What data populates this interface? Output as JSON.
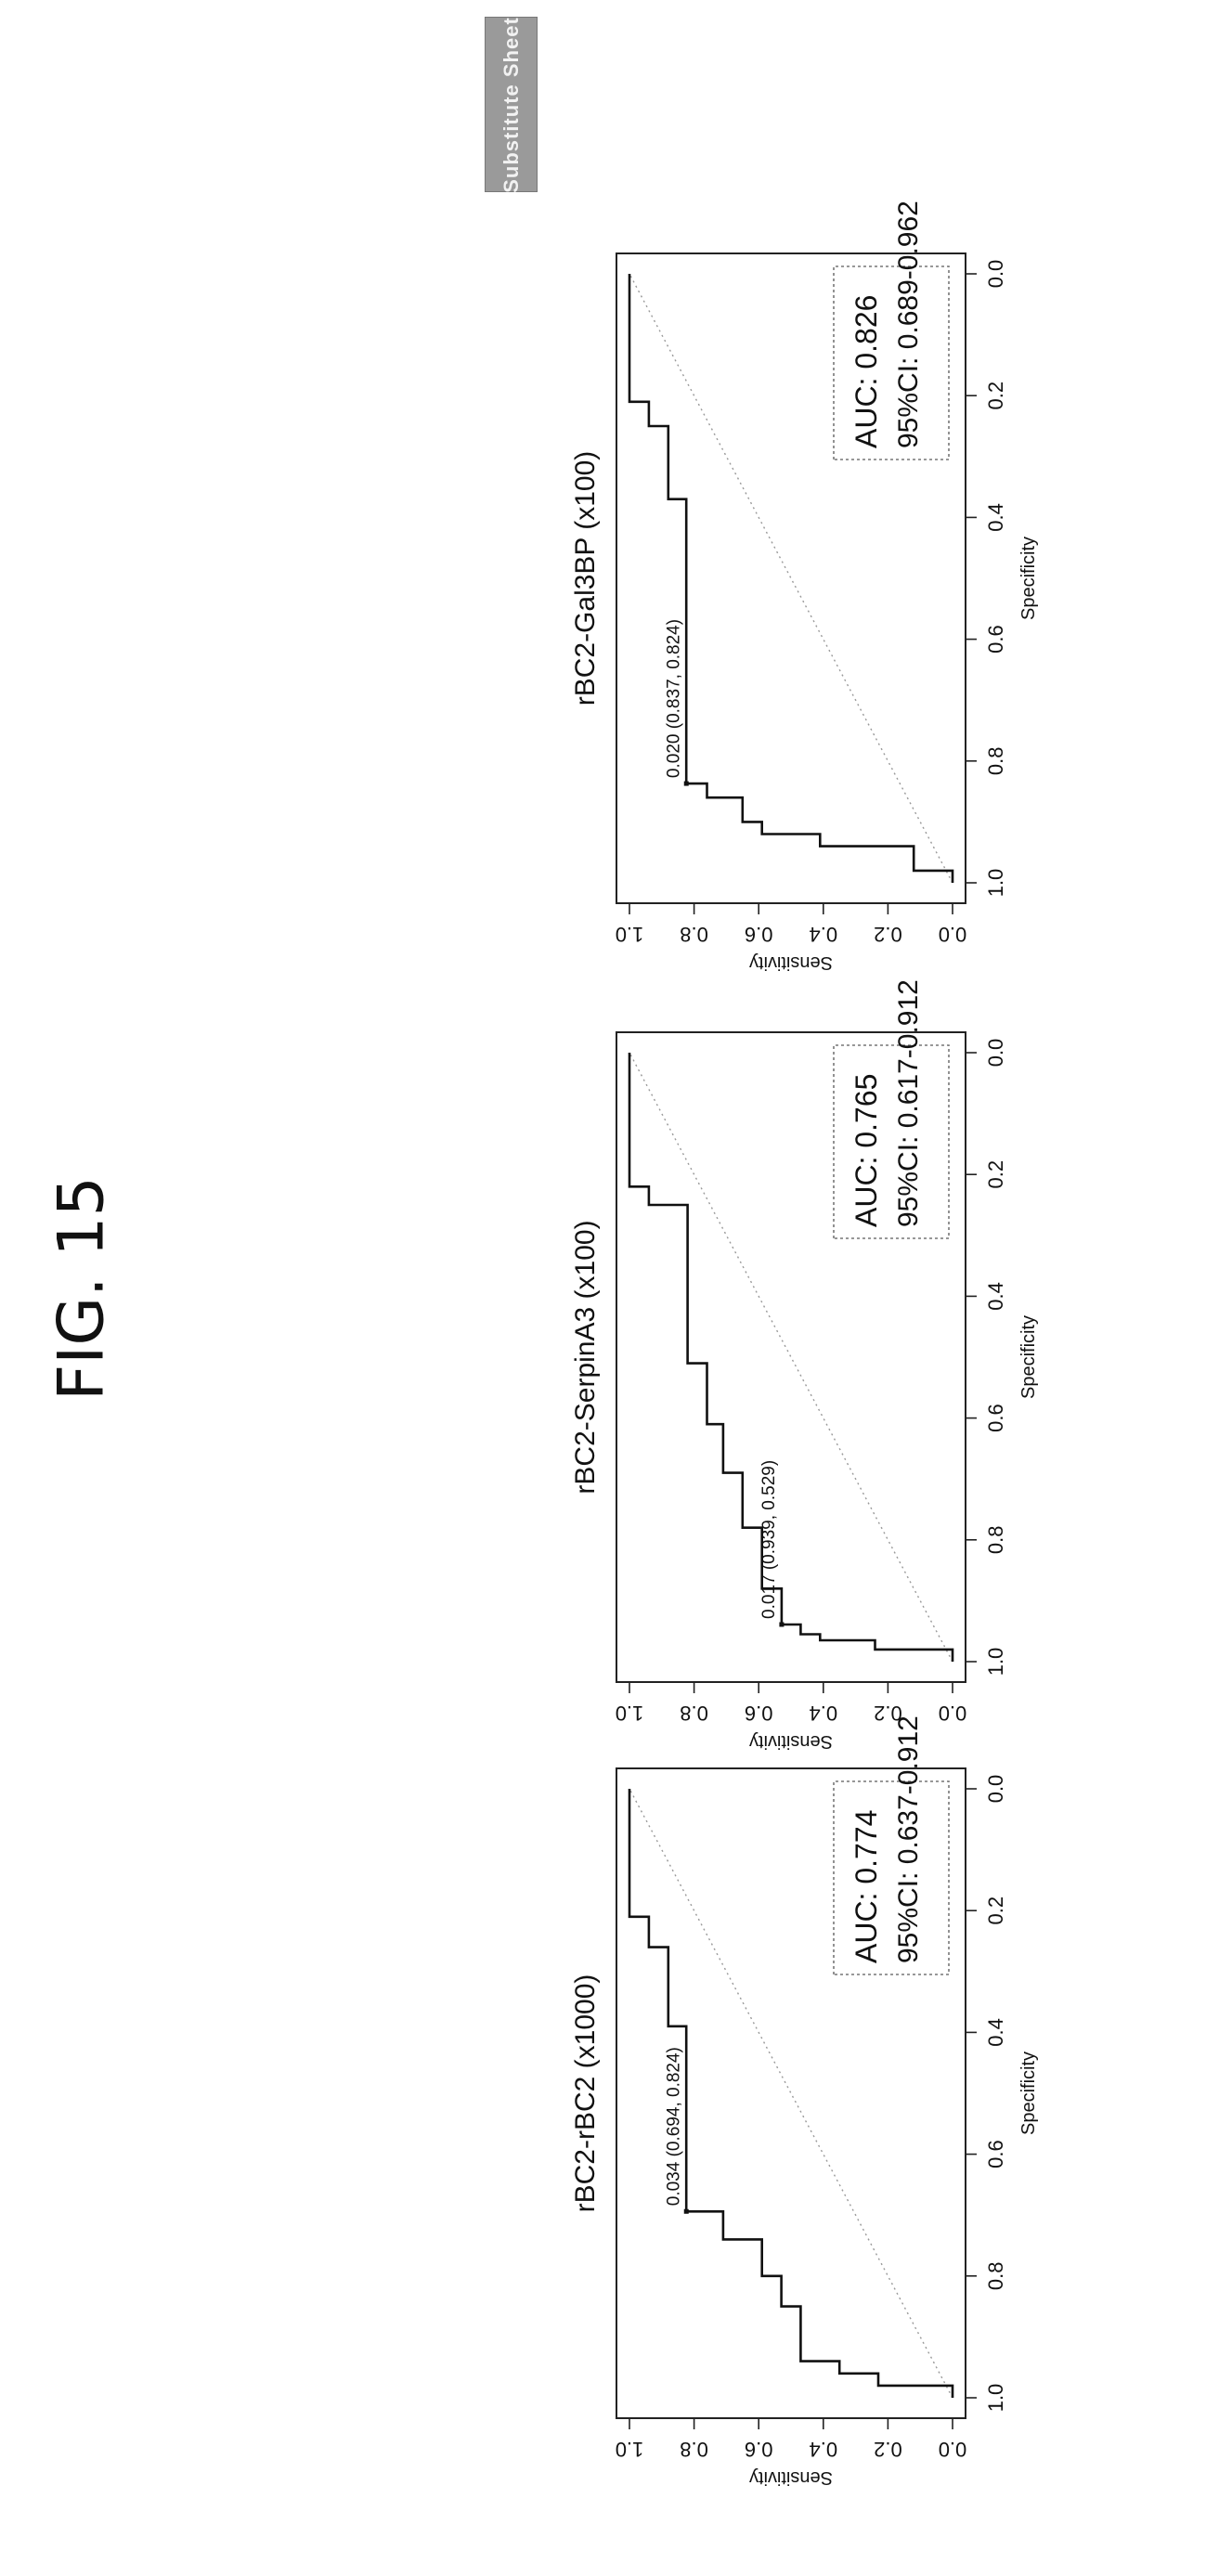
{
  "figure_title": "FIG. 15",
  "stamp_text": "Substitute Sheet",
  "chart_data": [
    {
      "type": "line",
      "title": "rBC2-rBC2 (x1000)",
      "xlabel": "Specificity",
      "ylabel": "Sensitivity",
      "xlim": [
        1.0,
        0.0
      ],
      "ylim": [
        0.0,
        1.0
      ],
      "x_ticks": [
        "1.0",
        "0.8",
        "0.6",
        "0.4",
        "0.2",
        "0.0"
      ],
      "y_ticks": [
        "0.0",
        "0.2",
        "0.4",
        "0.6",
        "0.8",
        "1.0"
      ],
      "grid": false,
      "series": [
        {
          "x": [
            1.0,
            0.98,
            0.98,
            0.96,
            0.96,
            0.94,
            0.94,
            0.85,
            0.85,
            0.8,
            0.8,
            0.74,
            0.74,
            0.694,
            0.694,
            0.39,
            0.39,
            0.26,
            0.26,
            0.21,
            0.21,
            0.0
          ],
          "y": [
            0.0,
            0.0,
            0.23,
            0.23,
            0.35,
            0.35,
            0.47,
            0.47,
            0.53,
            0.53,
            0.59,
            0.59,
            0.71,
            0.71,
            0.824,
            0.824,
            0.88,
            0.88,
            0.94,
            0.94,
            1.0,
            1.0
          ]
        }
      ],
      "reference_line": {
        "x": [
          1.0,
          0.0
        ],
        "y": [
          0.0,
          1.0
        ]
      },
      "threshold": {
        "label": "0.034 (0.694, 0.824)",
        "specificity": 0.694,
        "sensitivity": 0.824
      },
      "annotation": {
        "auc": "AUC: 0.774",
        "ci": "95%CI: 0.637-0.912"
      }
    },
    {
      "type": "line",
      "title": "rBC2-SerpinA3 (x100)",
      "xlabel": "Specificity",
      "ylabel": "Sensitivity",
      "xlim": [
        1.0,
        0.0
      ],
      "ylim": [
        0.0,
        1.0
      ],
      "x_ticks": [
        "1.0",
        "0.8",
        "0.6",
        "0.4",
        "0.2",
        "0.0"
      ],
      "y_ticks": [
        "0.0",
        "0.2",
        "0.4",
        "0.6",
        "0.8",
        "1.0"
      ],
      "grid": false,
      "series": [
        {
          "x": [
            1.0,
            0.98,
            0.98,
            0.965,
            0.965,
            0.955,
            0.955,
            0.939,
            0.939,
            0.88,
            0.88,
            0.78,
            0.78,
            0.69,
            0.69,
            0.61,
            0.61,
            0.51,
            0.51,
            0.25,
            0.25,
            0.22,
            0.22,
            0.0
          ],
          "y": [
            0.0,
            0.0,
            0.24,
            0.24,
            0.41,
            0.41,
            0.47,
            0.47,
            0.529,
            0.529,
            0.59,
            0.59,
            0.65,
            0.65,
            0.71,
            0.71,
            0.76,
            0.76,
            0.82,
            0.82,
            0.94,
            0.94,
            1.0,
            1.0
          ]
        }
      ],
      "reference_line": {
        "x": [
          1.0,
          0.0
        ],
        "y": [
          0.0,
          1.0
        ]
      },
      "threshold": {
        "label": "0.017 (0.939, 0.529)",
        "specificity": 0.939,
        "sensitivity": 0.529
      },
      "annotation": {
        "auc": "AUC: 0.765",
        "ci": "95%CI: 0.617-0.912"
      }
    },
    {
      "type": "line",
      "title": "rBC2-Gal3BP (x100)",
      "xlabel": "Specificity",
      "ylabel": "Sensitivity",
      "xlim": [
        1.0,
        0.0
      ],
      "ylim": [
        0.0,
        1.0
      ],
      "x_ticks": [
        "1.0",
        "0.8",
        "0.6",
        "0.4",
        "0.2",
        "0.0"
      ],
      "y_ticks": [
        "0.0",
        "0.2",
        "0.4",
        "0.6",
        "0.8",
        "1.0"
      ],
      "grid": false,
      "series": [
        {
          "x": [
            1.0,
            0.98,
            0.98,
            0.94,
            0.94,
            0.92,
            0.92,
            0.9,
            0.9,
            0.86,
            0.86,
            0.837,
            0.837,
            0.37,
            0.37,
            0.25,
            0.25,
            0.21,
            0.21,
            0.0
          ],
          "y": [
            0.0,
            0.0,
            0.12,
            0.12,
            0.41,
            0.41,
            0.59,
            0.59,
            0.65,
            0.65,
            0.76,
            0.76,
            0.824,
            0.824,
            0.88,
            0.88,
            0.94,
            0.94,
            1.0,
            1.0
          ]
        }
      ],
      "reference_line": {
        "x": [
          1.0,
          0.0
        ],
        "y": [
          0.0,
          1.0
        ]
      },
      "threshold": {
        "label": "0.020 (0.837, 0.824)",
        "specificity": 0.837,
        "sensitivity": 0.824
      },
      "annotation": {
        "auc": "AUC: 0.826",
        "ci": "95%CI: 0.689-0.962"
      }
    }
  ]
}
